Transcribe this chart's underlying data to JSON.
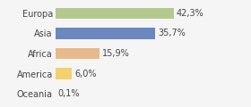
{
  "categories": [
    "Europa",
    "Asia",
    "Africa",
    "America",
    "Oceania"
  ],
  "values": [
    42.3,
    35.7,
    15.9,
    6.0,
    0.1
  ],
  "labels": [
    "42,3%",
    "35,7%",
    "15,9%",
    "6,0%",
    "0,1%"
  ],
  "bar_colors": [
    "#b5c98e",
    "#6b87c0",
    "#e8b98a",
    "#f5d06e",
    "#dddddd"
  ],
  "background_color": "#f5f5f5",
  "xlim": [
    0,
    68
  ],
  "label_fontsize": 7.0,
  "tick_fontsize": 7.0,
  "bar_height": 0.55
}
